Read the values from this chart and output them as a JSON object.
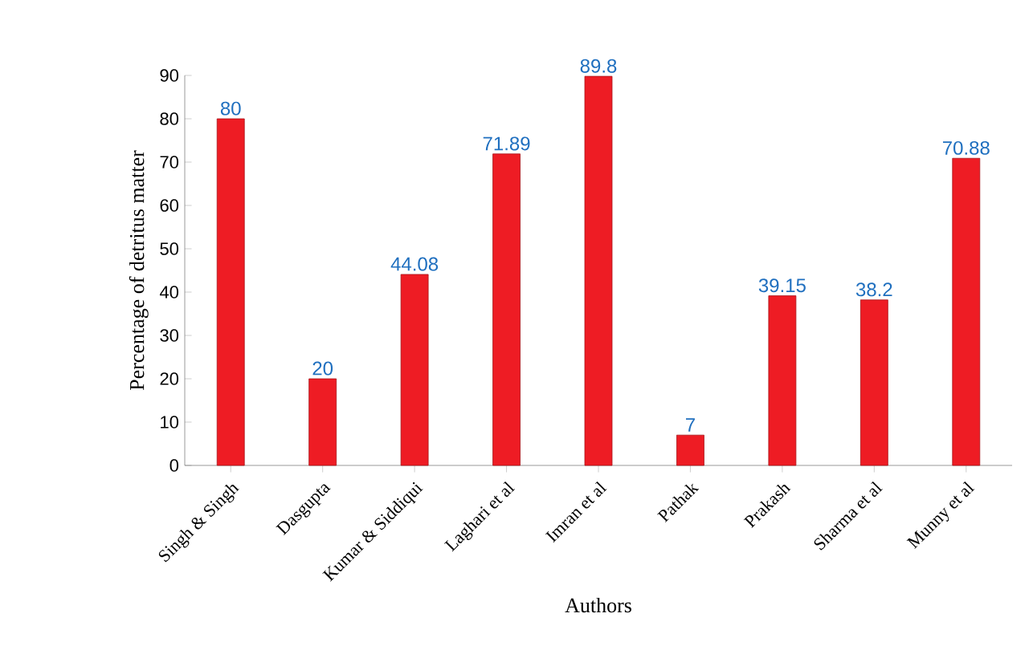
{
  "chart_data": {
    "type": "bar",
    "xlabel": "Authors",
    "ylabel": "Percentage of detritus matter",
    "categories": [
      "Singh & Singh",
      "Dasgupta",
      "Kumar & Siddiqui",
      "Laghari et al",
      "Imran et al",
      "Pathak",
      "Prakash",
      "Sharma et al",
      "Munny et al"
    ],
    "values": [
      80,
      20,
      44.08,
      71.89,
      89.8,
      7,
      39.15,
      38.2,
      70.88
    ],
    "color": "#ee1c24",
    "ylim": [
      0,
      90
    ],
    "yticks": [
      0,
      10,
      20,
      30,
      40,
      50,
      60,
      70,
      80,
      90
    ],
    "data_labels": true
  }
}
